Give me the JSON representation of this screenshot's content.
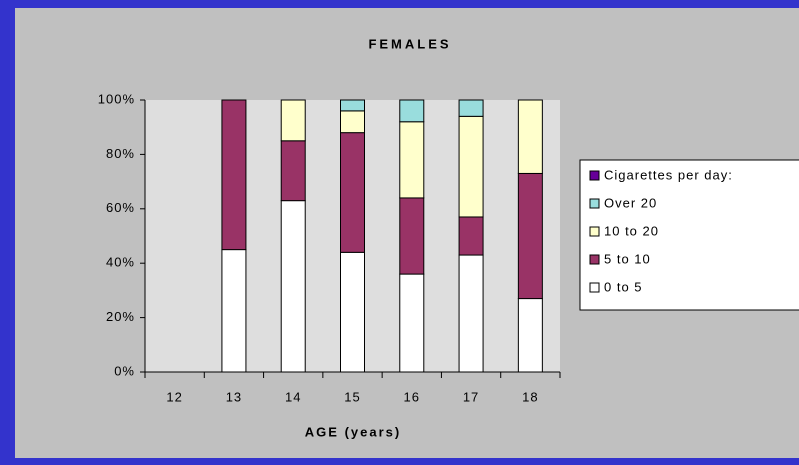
{
  "chart_data": {
    "type": "stacked_bar",
    "title": "FEMALES",
    "x_label": "AGE (years)",
    "categories": [
      "12",
      "13",
      "14",
      "15",
      "16",
      "17",
      "18"
    ],
    "series": [
      {
        "name": "0 to 5",
        "color": "#ffffff",
        "values": [
          null,
          45,
          63,
          44,
          36,
          43,
          27
        ]
      },
      {
        "name": "5 to 10",
        "color": "#993366",
        "values": [
          null,
          55,
          22,
          44,
          28,
          14,
          46
        ]
      },
      {
        "name": "10 to 20",
        "color": "#ffffcc",
        "values": [
          null,
          null,
          15,
          8,
          28,
          37,
          27
        ]
      },
      {
        "name": "Over 20",
        "color": "#99dddd",
        "values": [
          null,
          null,
          null,
          4,
          8,
          6,
          null
        ]
      }
    ],
    "legend_title": "Cigarettes per day:",
    "legend_title_color": "#660099",
    "ylim": [
      0,
      100
    ],
    "yticks": [
      {
        "value": 0,
        "label": "0%"
      },
      {
        "value": 20,
        "label": "20%"
      },
      {
        "value": 40,
        "label": "40%"
      },
      {
        "value": 60,
        "label": "60%"
      },
      {
        "value": 80,
        "label": "80%"
      },
      {
        "value": 100,
        "label": "100%"
      }
    ]
  }
}
